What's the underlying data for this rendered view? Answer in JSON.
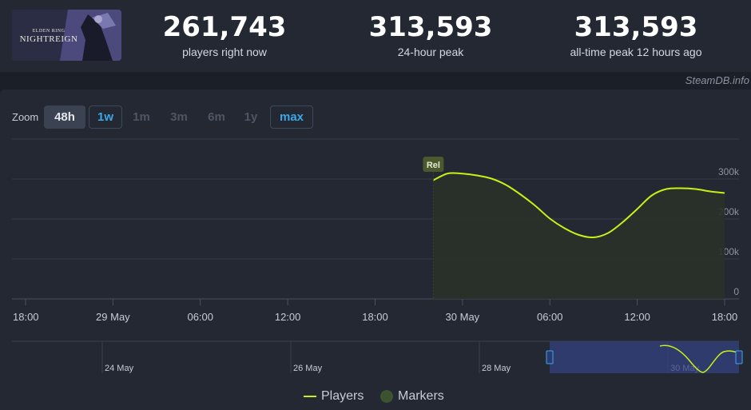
{
  "header": {
    "logo_line1": "ELDEN RING",
    "logo_line2": "NIGHTREIGN",
    "stats": [
      {
        "value": "261,743",
        "label": "players right now"
      },
      {
        "value": "313,593",
        "label": "24-hour peak"
      },
      {
        "value": "313,593",
        "label": "all-time peak 12 hours ago"
      }
    ],
    "credit": "SteamDB.info"
  },
  "zoom": {
    "label": "Zoom",
    "buttons": [
      "48h",
      "1w",
      "1m",
      "3m",
      "6m",
      "1y",
      "max"
    ],
    "active": "48h"
  },
  "chart_data": {
    "type": "area",
    "title": "",
    "xlabel": "",
    "ylabel": "",
    "ylim": [
      0,
      300000
    ],
    "y_ticks": [
      "0",
      "100k",
      "200k",
      "300k"
    ],
    "x_ticks": [
      "18:00",
      "29 May",
      "06:00",
      "12:00",
      "18:00",
      "30 May",
      "06:00",
      "12:00",
      "18:00"
    ],
    "x_range_hours": [
      -6,
      42
    ],
    "grid": true,
    "series": [
      {
        "name": "Players",
        "color": "#c9f015",
        "points": [
          [
            22.0,
            297000
          ],
          [
            23.0,
            314000
          ],
          [
            24.0,
            313500
          ],
          [
            25.0,
            309000
          ],
          [
            26.0,
            301000
          ],
          [
            27.0,
            285000
          ],
          [
            28.0,
            261000
          ],
          [
            29.0,
            233000
          ],
          [
            30.0,
            201000
          ],
          [
            31.0,
            177000
          ],
          [
            32.0,
            160000
          ],
          [
            33.0,
            154000
          ],
          [
            34.0,
            165000
          ],
          [
            35.0,
            192000
          ],
          [
            36.0,
            225000
          ],
          [
            37.0,
            259000
          ],
          [
            38.0,
            275000
          ],
          [
            39.0,
            277000
          ],
          [
            40.0,
            275000
          ],
          [
            41.0,
            269000
          ],
          [
            42.0,
            265000
          ]
        ]
      }
    ],
    "markers": [
      {
        "label": "Rel",
        "x": 22.0
      }
    ],
    "navigator": {
      "labels": [
        "24 May",
        "26 May",
        "28 May",
        "30 May"
      ]
    },
    "legend": [
      "Players",
      "Markers"
    ],
    "legend_position": "bottom"
  }
}
